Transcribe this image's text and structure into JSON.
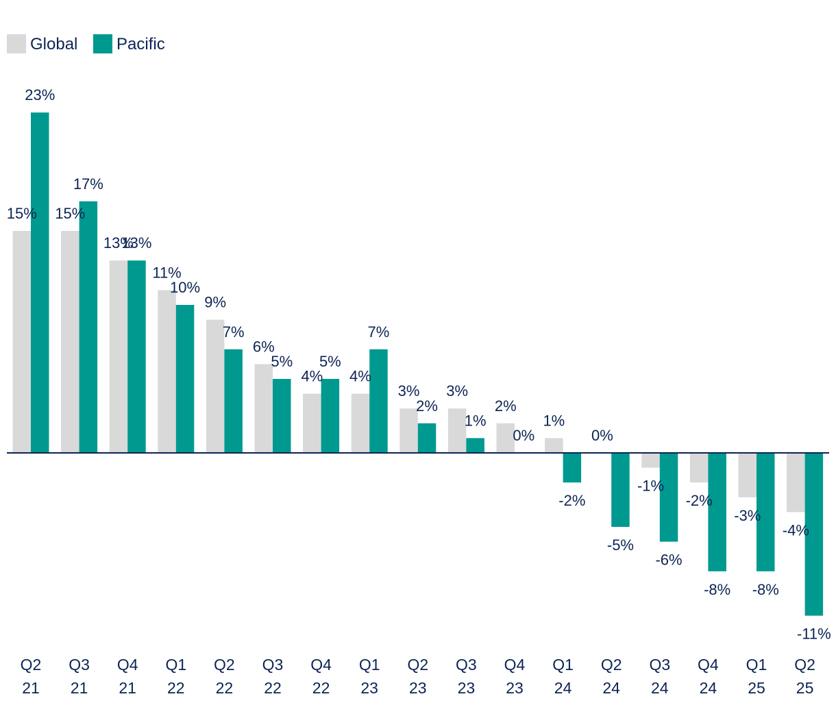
{
  "chart_data": {
    "type": "bar",
    "title": "",
    "xlabel": "",
    "ylabel": "",
    "categories": [
      [
        "Q2",
        "21"
      ],
      [
        "Q3",
        "21"
      ],
      [
        "Q4",
        "21"
      ],
      [
        "Q1",
        "22"
      ],
      [
        "Q2",
        "22"
      ],
      [
        "Q3",
        "22"
      ],
      [
        "Q4",
        "22"
      ],
      [
        "Q1",
        "23"
      ],
      [
        "Q2",
        "23"
      ],
      [
        "Q3",
        "23"
      ],
      [
        "Q4",
        "23"
      ],
      [
        "Q1",
        "24"
      ],
      [
        "Q2",
        "24"
      ],
      [
        "Q3",
        "24"
      ],
      [
        "Q4",
        "24"
      ],
      [
        "Q1",
        "25"
      ],
      [
        "Q2",
        "25"
      ]
    ],
    "series": [
      {
        "name": "Global",
        "color": "#d9d9d9",
        "values": [
          15,
          15,
          13,
          11,
          9,
          6,
          4,
          4,
          3,
          3,
          2,
          1,
          0,
          -1,
          -2,
          -3,
          -4
        ],
        "labels": [
          "15%",
          "15%",
          "13%",
          "11%",
          "9%",
          "6%",
          "4%",
          "4%",
          "3%",
          "3%",
          "2%",
          "1%",
          "0%",
          "-1%",
          "-2%",
          "-3%",
          "-4%"
        ]
      },
      {
        "name": "Pacific",
        "color": "#009990",
        "values": [
          23,
          17,
          13,
          10,
          7,
          5,
          5,
          7,
          2,
          1,
          0,
          -2,
          -5,
          -6,
          -8,
          -8,
          -11
        ],
        "labels": [
          "23%",
          "17%",
          "13%",
          "10%",
          "7%",
          "5%",
          "5%",
          "7%",
          "2%",
          "1%",
          "0%",
          "-2%",
          "-5%",
          "-6%",
          "-8%",
          "-8%",
          "-11%"
        ]
      }
    ],
    "ylim": [
      -12,
      24
    ],
    "grid": false,
    "legend_position": "top-left",
    "axis_color": "#0b2453"
  }
}
